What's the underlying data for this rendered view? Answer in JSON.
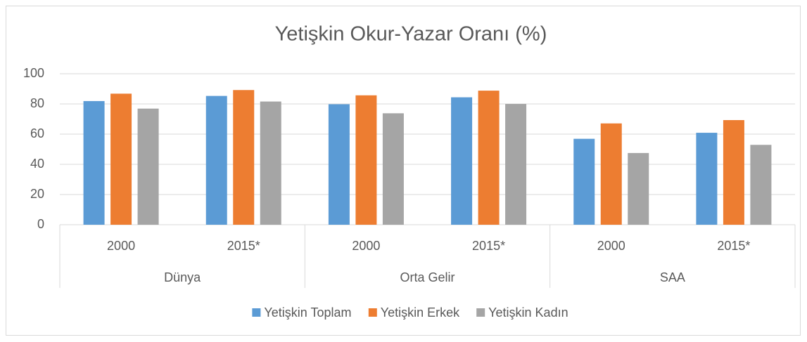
{
  "chart_data": {
    "type": "bar",
    "title": "Yetişkin Okur-Yazar Oranı (%)",
    "categories": [
      "2000",
      "2015*",
      "2000",
      "2015*",
      "2000",
      "2015*"
    ],
    "groups": [
      "Dünya",
      "Orta Gelir",
      "SAA"
    ],
    "series": [
      {
        "name": "Yetişkin Toplam",
        "color": "#5b9bd5",
        "values": [
          81.9,
          85.3,
          79.8,
          84.4,
          56.9,
          60.9
        ]
      },
      {
        "name": "Yetişkin Erkek",
        "color": "#ed7d31",
        "values": [
          86.8,
          89.2,
          85.7,
          88.8,
          67.1,
          69.3
        ]
      },
      {
        "name": "Yetişkin Kadın",
        "color": "#a5a5a5",
        "values": [
          76.9,
          81.6,
          73.8,
          80.0,
          47.5,
          52.9
        ]
      }
    ],
    "ylim": [
      0,
      100
    ],
    "yticks": [
      0,
      20,
      40,
      60,
      80,
      100
    ],
    "grid": true,
    "legend": "bottom"
  }
}
